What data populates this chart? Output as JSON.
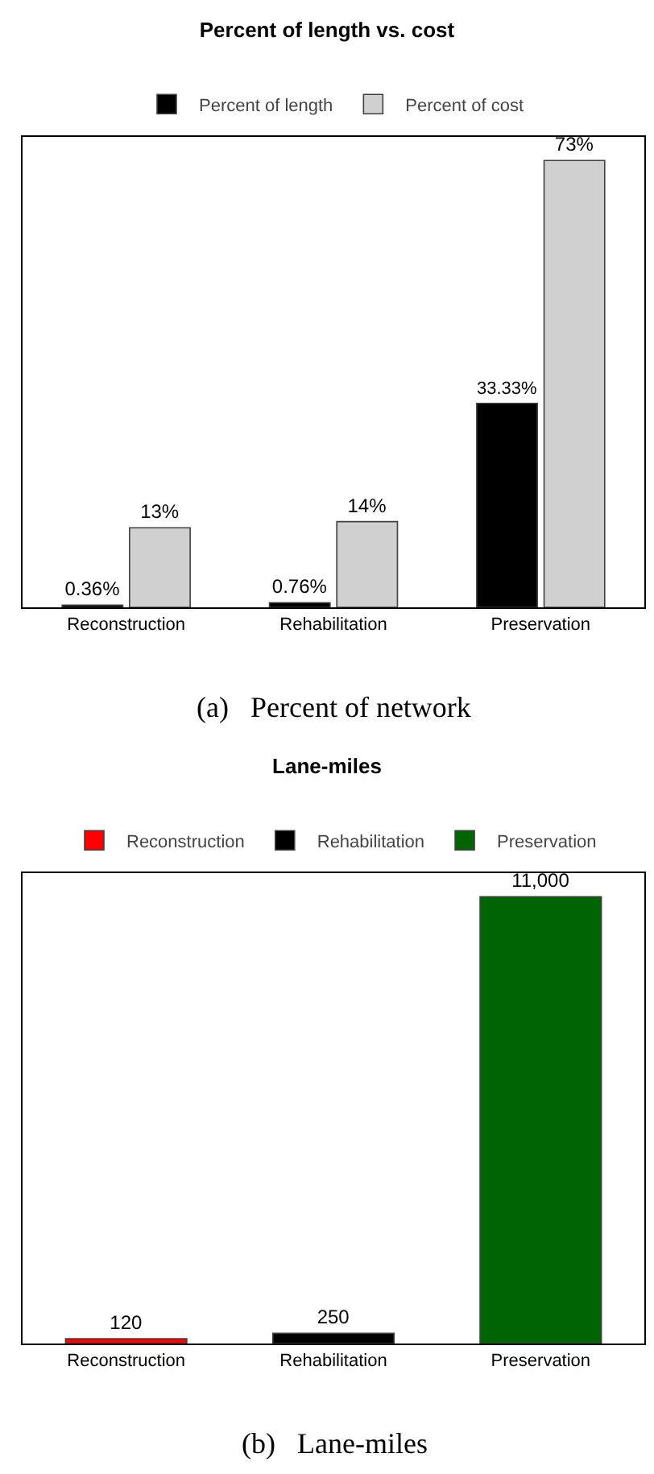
{
  "chart_data": [
    {
      "type": "bar",
      "title": "Percent of length vs. cost",
      "categories": [
        "Reconstruction",
        "Rehabilitation",
        "Preservation"
      ],
      "series": [
        {
          "name": "Percent of length",
          "color": "#000000",
          "values": [
            0.36,
            0.76,
            33.33
          ],
          "value_labels": [
            "0.36%",
            "0.76%",
            "33.33%"
          ]
        },
        {
          "name": "Percent of cost",
          "color": "#d0d0d0",
          "values": [
            13,
            14,
            73
          ],
          "value_labels": [
            "13%",
            "14%",
            "73%"
          ]
        }
      ],
      "legend": "top",
      "annotations": [
        "(a)   Percent of network"
      ]
    },
    {
      "type": "bar",
      "title": "Lane-miles",
      "categories": [
        "Reconstruction",
        "Rehabilitation",
        "Preservation"
      ],
      "stacked": true,
      "series": [
        {
          "name": "Reconstruction",
          "color": "#ff0000",
          "values": [
            120,
            null,
            null
          ],
          "value_labels": [
            "120",
            null,
            null
          ]
        },
        {
          "name": "Rehabilitation",
          "color": "#000000",
          "values": [
            null,
            250,
            null
          ],
          "value_labels": [
            null,
            "250",
            null
          ]
        },
        {
          "name": "Preservation",
          "color": "#006400",
          "values": [
            null,
            null,
            11000
          ],
          "value_labels": [
            null,
            null,
            "11,000"
          ]
        }
      ],
      "legend": "top",
      "annotations": [
        "(b)   Lane-miles"
      ]
    }
  ]
}
